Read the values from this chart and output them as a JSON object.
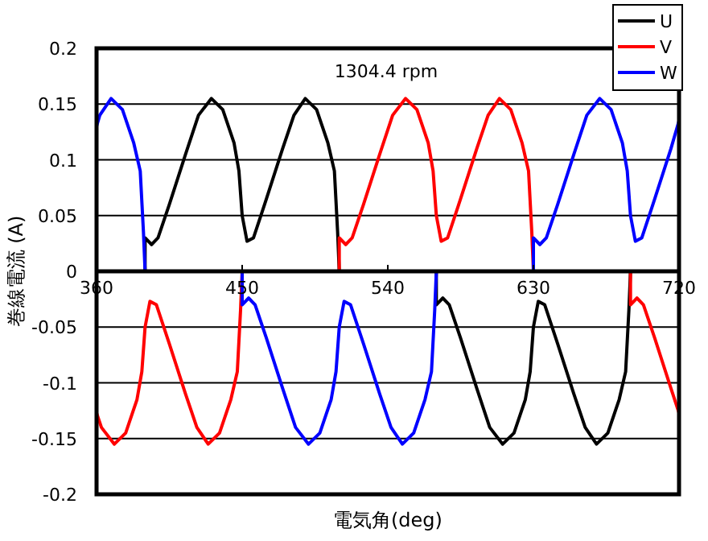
{
  "chart_data": {
    "type": "line",
    "xlabel": "電気角(deg)",
    "ylabel": "巻線電流 (A)",
    "annotations": [
      "1304.4 rpm"
    ],
    "xlim": [
      360,
      720
    ],
    "xticks": [
      360,
      450,
      540,
      630,
      720
    ],
    "ylim": [
      -0.2,
      0.2
    ],
    "yticks": [
      -0.2,
      -0.15,
      -0.1,
      -0.05,
      0,
      0.05,
      0.1,
      0.15,
      0.2
    ],
    "grid": "y",
    "legend": "top right",
    "marker": "none",
    "line_style": "solid",
    "series": [
      {
        "name": "U",
        "color": "#000000",
        "x": [
          360,
          390,
          390,
          394,
          398,
          405,
          415,
          423,
          431,
          438,
          445,
          448,
          450,
          453,
          457,
          465,
          475,
          482,
          489,
          496,
          503,
          507,
          509,
          510,
          570,
          570,
          574,
          578,
          585,
          595,
          603,
          611,
          618,
          625,
          628,
          630,
          633,
          637,
          645,
          655,
          662,
          669,
          676,
          683,
          687,
          689,
          690,
          720
        ],
        "values": [
          0,
          0,
          0.03,
          0.024,
          0.03,
          0.06,
          0.105,
          0.14,
          0.155,
          0.145,
          0.115,
          0.09,
          0.05,
          0.027,
          0.03,
          0.065,
          0.11,
          0.14,
          0.155,
          0.145,
          0.115,
          0.09,
          0.035,
          0,
          0,
          -0.03,
          -0.024,
          -0.03,
          -0.06,
          -0.105,
          -0.14,
          -0.155,
          -0.145,
          -0.115,
          -0.09,
          -0.05,
          -0.027,
          -0.03,
          -0.065,
          -0.11,
          -0.14,
          -0.155,
          -0.145,
          -0.115,
          -0.09,
          -0.035,
          0,
          0
        ]
      },
      {
        "name": "V",
        "color": "#ff0000",
        "x": [
          360,
          363,
          371,
          378,
          385,
          388,
          390,
          393,
          397,
          405,
          415,
          422,
          429,
          436,
          443,
          447,
          449,
          450,
          510,
          510,
          514,
          518,
          525,
          535,
          543,
          551,
          558,
          565,
          568,
          570,
          573,
          577,
          585,
          595,
          602,
          609,
          616,
          623,
          627,
          629,
          630,
          690,
          690,
          694,
          698,
          705,
          715,
          720
        ],
        "values": [
          -0.127,
          -0.14,
          -0.155,
          -0.145,
          -0.115,
          -0.09,
          -0.05,
          -0.027,
          -0.03,
          -0.065,
          -0.11,
          -0.14,
          -0.155,
          -0.145,
          -0.115,
          -0.09,
          -0.035,
          0,
          0,
          0.03,
          0.024,
          0.03,
          0.06,
          0.105,
          0.14,
          0.155,
          0.145,
          0.115,
          0.09,
          0.05,
          0.027,
          0.03,
          0.065,
          0.11,
          0.14,
          0.155,
          0.145,
          0.115,
          0.09,
          0.035,
          0,
          0,
          -0.03,
          -0.024,
          -0.03,
          -0.06,
          -0.105,
          -0.127
        ]
      },
      {
        "name": "W",
        "color": "#0000ff",
        "x": [
          360,
          362,
          369,
          376,
          383,
          387,
          389,
          390,
          450,
          450,
          454,
          458,
          465,
          475,
          483,
          491,
          498,
          505,
          508,
          510,
          513,
          517,
          525,
          535,
          542,
          549,
          556,
          563,
          567,
          569,
          570,
          630,
          630,
          634,
          638,
          645,
          655,
          663,
          671,
          678,
          685,
          688,
          690,
          693,
          697,
          705,
          715,
          720
        ],
        "values": [
          0.13,
          0.14,
          0.155,
          0.145,
          0.115,
          0.09,
          0.035,
          0,
          0,
          -0.03,
          -0.024,
          -0.03,
          -0.06,
          -0.105,
          -0.14,
          -0.155,
          -0.145,
          -0.115,
          -0.09,
          -0.05,
          -0.027,
          -0.03,
          -0.065,
          -0.11,
          -0.14,
          -0.155,
          -0.145,
          -0.115,
          -0.09,
          -0.035,
          0,
          0,
          0.03,
          0.024,
          0.03,
          0.06,
          0.105,
          0.14,
          0.155,
          0.145,
          0.115,
          0.09,
          0.05,
          0.027,
          0.03,
          0.065,
          0.11,
          0.135
        ]
      }
    ]
  }
}
